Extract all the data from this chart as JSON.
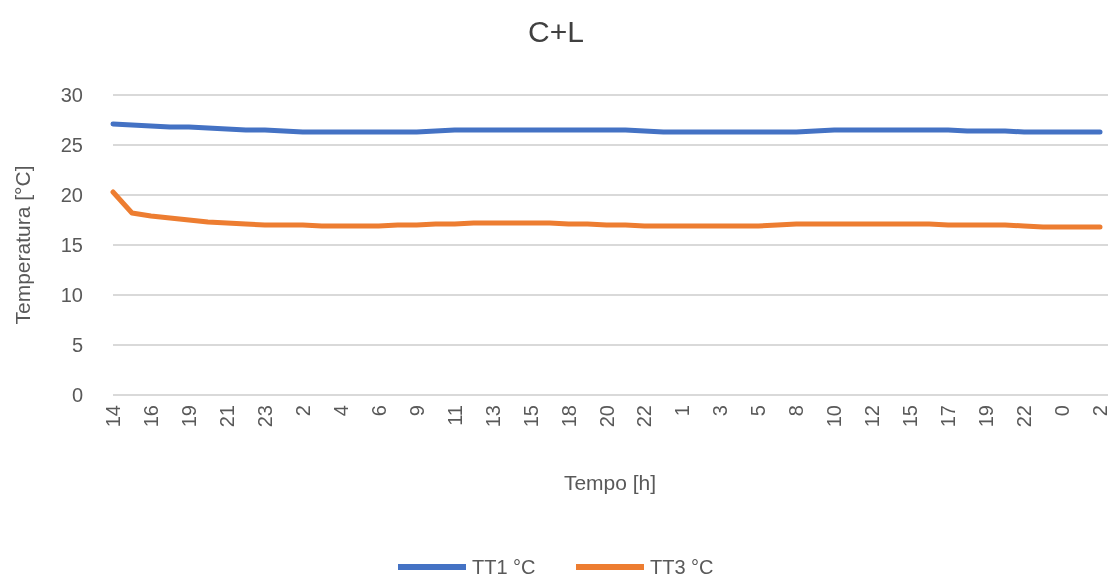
{
  "chart_data": {
    "type": "line",
    "title": "C+L",
    "xlabel": "Tempo [h]",
    "ylabel": "Temperatura [°C]",
    "categories": [
      "14",
      null,
      "16",
      null,
      "19",
      null,
      "21",
      null,
      "23",
      null,
      "2",
      null,
      "4",
      null,
      "6",
      null,
      "9",
      null,
      "11",
      null,
      "13",
      null,
      "15",
      null,
      "18",
      null,
      "20",
      null,
      "22",
      null,
      "1",
      null,
      "3",
      null,
      "5",
      null,
      "8",
      null,
      "10",
      null,
      "12",
      null,
      "15",
      null,
      "17",
      null,
      "19",
      null,
      "22",
      null,
      "0",
      null,
      "2"
    ],
    "series": [
      {
        "name": "TT1 °C",
        "color": "#4472c4",
        "values": [
          27.1,
          27.0,
          26.9,
          26.8,
          26.8,
          26.7,
          26.6,
          26.5,
          26.5,
          26.4,
          26.3,
          26.3,
          26.3,
          26.3,
          26.3,
          26.3,
          26.3,
          26.4,
          26.5,
          26.5,
          26.5,
          26.5,
          26.5,
          26.5,
          26.5,
          26.5,
          26.5,
          26.5,
          26.4,
          26.3,
          26.3,
          26.3,
          26.3,
          26.3,
          26.3,
          26.3,
          26.3,
          26.4,
          26.5,
          26.5,
          26.5,
          26.5,
          26.5,
          26.5,
          26.5,
          26.4,
          26.4,
          26.4,
          26.3,
          26.3,
          26.3,
          26.3,
          26.3
        ]
      },
      {
        "name": "TT3 °C",
        "color": "#ed7d31",
        "values": [
          20.3,
          18.2,
          17.9,
          17.7,
          17.5,
          17.3,
          17.2,
          17.1,
          17.0,
          17.0,
          17.0,
          16.9,
          16.9,
          16.9,
          16.9,
          17.0,
          17.0,
          17.1,
          17.1,
          17.2,
          17.2,
          17.2,
          17.2,
          17.2,
          17.1,
          17.1,
          17.0,
          17.0,
          16.9,
          16.9,
          16.9,
          16.9,
          16.9,
          16.9,
          16.9,
          17.0,
          17.1,
          17.1,
          17.1,
          17.1,
          17.1,
          17.1,
          17.1,
          17.1,
          17.0,
          17.0,
          17.0,
          17.0,
          16.9,
          16.8,
          16.8,
          16.8,
          16.8
        ]
      }
    ],
    "ylim": [
      0,
      30
    ],
    "yticks": [
      0,
      5,
      10,
      15,
      20,
      25,
      30
    ],
    "grid": "y",
    "legend": "bottom",
    "marker": "none",
    "line_style": "solid"
  }
}
